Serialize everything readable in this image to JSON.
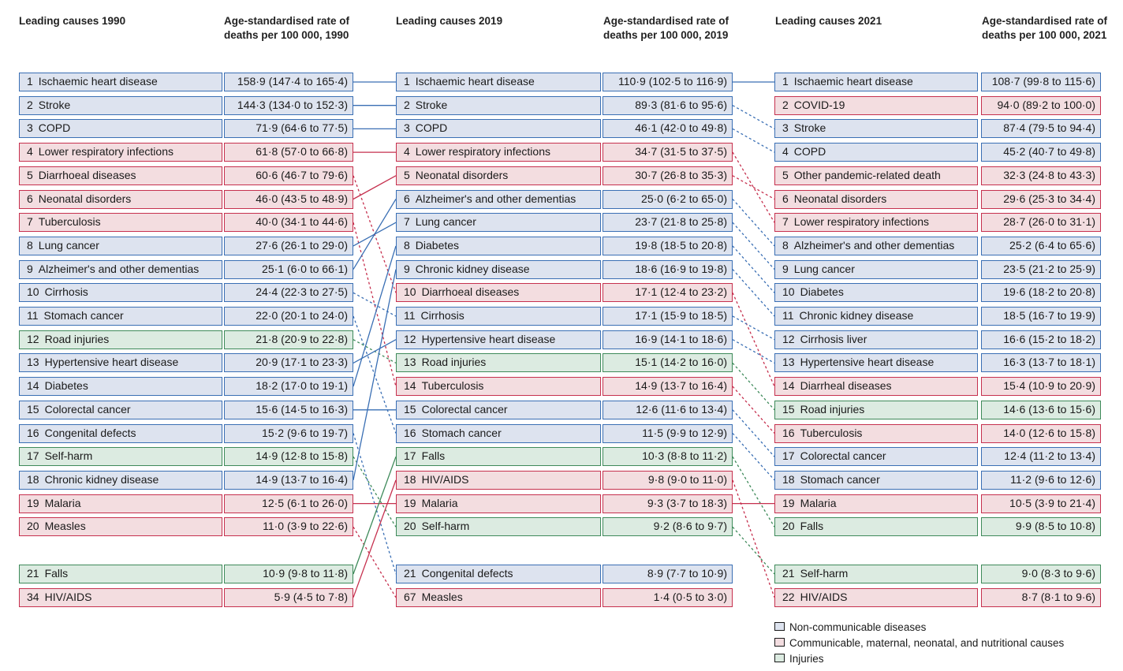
{
  "colors": {
    "ncd": "#3a6fb4",
    "cmn": "#c6304e",
    "inj": "#3e8a5a"
  },
  "legend": [
    {
      "category": "ncd",
      "label": "Non-communicable diseases"
    },
    {
      "category": "cmn",
      "label": "Communicable, maternal, neonatal, and nutritional causes"
    },
    {
      "category": "inj",
      "label": "Injuries"
    }
  ],
  "chart_data": {
    "type": "table",
    "headers": {
      "cause_1990": "Leading causes 1990",
      "rate_1990": "Age-standardised rate of deaths per 100 000, 1990",
      "cause_2019": "Leading causes 2019",
      "rate_2019": "Age-standardised rate of deaths per 100 000, 2019",
      "cause_2021": "Leading causes 2021",
      "rate_2021": "Age-standardised rate of deaths per 100 000, 2021"
    },
    "columns": [
      {
        "year": "1990",
        "rows": [
          {
            "rank": "1",
            "cause": "Ischaemic heart disease",
            "rate": "158·9 (147·4 to 165·4)",
            "category": "ncd",
            "key": "ihd"
          },
          {
            "rank": "2",
            "cause": "Stroke",
            "rate": "144·3 (134·0 to 152·3)",
            "category": "ncd",
            "key": "stroke"
          },
          {
            "rank": "3",
            "cause": "COPD",
            "rate": "71·9 (64·6 to 77·5)",
            "category": "ncd",
            "key": "copd"
          },
          {
            "rank": "4",
            "cause": "Lower respiratory infections",
            "rate": "61·8 (57·0 to 66·8)",
            "category": "cmn",
            "key": "lri"
          },
          {
            "rank": "5",
            "cause": "Diarrhoeal diseases",
            "rate": "60·6 (46·7 to 79·6)",
            "category": "cmn",
            "key": "diarrhoea"
          },
          {
            "rank": "6",
            "cause": "Neonatal disorders",
            "rate": "46·0 (43·5 to 48·9)",
            "category": "cmn",
            "key": "neonatal"
          },
          {
            "rank": "7",
            "cause": "Tuberculosis",
            "rate": "40·0 (34·1 to 44·6)",
            "category": "cmn",
            "key": "tb"
          },
          {
            "rank": "8",
            "cause": "Lung cancer",
            "rate": "27·6 (26·1 to 29·0)",
            "category": "ncd",
            "key": "lung"
          },
          {
            "rank": "9",
            "cause": "Alzheimer's and other dementias",
            "rate": "25·1 (6·0 to 66·1)",
            "category": "ncd",
            "key": "alz"
          },
          {
            "rank": "10",
            "cause": "Cirrhosis",
            "rate": "24·4 (22·3 to 27·5)",
            "category": "ncd",
            "key": "cirrhosis"
          },
          {
            "rank": "11",
            "cause": "Stomach cancer",
            "rate": "22·0 (20·1 to 24·0)",
            "category": "ncd",
            "key": "stomach"
          },
          {
            "rank": "12",
            "cause": "Road injuries",
            "rate": "21·8 (20·9 to 22·8)",
            "category": "inj",
            "key": "road"
          },
          {
            "rank": "13",
            "cause": "Hypertensive heart disease",
            "rate": "20·9 (17·1 to 23·3)",
            "category": "ncd",
            "key": "hhd"
          },
          {
            "rank": "14",
            "cause": "Diabetes",
            "rate": "18·2 (17·0 to 19·1)",
            "category": "ncd",
            "key": "diabetes"
          },
          {
            "rank": "15",
            "cause": "Colorectal cancer",
            "rate": "15·6 (14·5 to 16·3)",
            "category": "ncd",
            "key": "colorectal"
          },
          {
            "rank": "16",
            "cause": "Congenital defects",
            "rate": "15·2 (9·6 to 19·7)",
            "category": "ncd",
            "key": "congenital"
          },
          {
            "rank": "17",
            "cause": "Self-harm",
            "rate": "14·9 (12·8 to 15·8)",
            "category": "inj",
            "key": "selfharm"
          },
          {
            "rank": "18",
            "cause": "Chronic kidney disease",
            "rate": "14·9 (13·7 to 16·4)",
            "category": "ncd",
            "key": "ckd"
          },
          {
            "rank": "19",
            "cause": "Malaria",
            "rate": "12·5 (6·1 to 26·0)",
            "category": "cmn",
            "key": "malaria"
          },
          {
            "rank": "20",
            "cause": "Measles",
            "rate": "11·0 (3·9 to 22·6)",
            "category": "cmn",
            "key": "measles"
          },
          {
            "rank": "21",
            "cause": "Falls",
            "rate": "10·9 (9·8 to 11·8)",
            "category": "inj",
            "key": "falls"
          },
          {
            "rank": "34",
            "cause": "HIV/AIDS",
            "rate": "5·9 (4·5 to 7·8)",
            "category": "cmn",
            "key": "hiv"
          }
        ]
      },
      {
        "year": "2019",
        "rows": [
          {
            "rank": "1",
            "cause": "Ischaemic heart disease",
            "rate": "110·9 (102·5 to 116·9)",
            "category": "ncd",
            "key": "ihd"
          },
          {
            "rank": "2",
            "cause": "Stroke",
            "rate": "89·3 (81·6 to 95·6)",
            "category": "ncd",
            "key": "stroke"
          },
          {
            "rank": "3",
            "cause": "COPD",
            "rate": "46·1 (42·0 to 49·8)",
            "category": "ncd",
            "key": "copd"
          },
          {
            "rank": "4",
            "cause": "Lower respiratory infections",
            "rate": "34·7 (31·5 to 37·5)",
            "category": "cmn",
            "key": "lri"
          },
          {
            "rank": "5",
            "cause": "Neonatal disorders",
            "rate": "30·7 (26·8 to 35·3)",
            "category": "cmn",
            "key": "neonatal"
          },
          {
            "rank": "6",
            "cause": "Alzheimer's and other dementias",
            "rate": "25·0 (6·2 to 65·0)",
            "category": "ncd",
            "key": "alz"
          },
          {
            "rank": "7",
            "cause": "Lung cancer",
            "rate": "23·7 (21·8 to 25·8)",
            "category": "ncd",
            "key": "lung"
          },
          {
            "rank": "8",
            "cause": "Diabetes",
            "rate": "19·8 (18·5 to 20·8)",
            "category": "ncd",
            "key": "diabetes"
          },
          {
            "rank": "9",
            "cause": "Chronic kidney disease",
            "rate": "18·6 (16·9 to 19·8)",
            "category": "ncd",
            "key": "ckd"
          },
          {
            "rank": "10",
            "cause": "Diarrhoeal  diseases",
            "rate": "17·1 (12·4 to 23·2)",
            "category": "cmn",
            "key": "diarrhoea"
          },
          {
            "rank": "11",
            "cause": "Cirrhosis",
            "rate": "17·1 (15·9 to 18·5)",
            "category": "ncd",
            "key": "cirrhosis"
          },
          {
            "rank": "12",
            "cause": "Hypertensive heart disease",
            "rate": "16·9 (14·1 to 18·6)",
            "category": "ncd",
            "key": "hhd"
          },
          {
            "rank": "13",
            "cause": "Road injuries",
            "rate": "15·1 (14·2 to 16·0)",
            "category": "inj",
            "key": "road"
          },
          {
            "rank": "14",
            "cause": "Tuberculosis",
            "rate": "14·9 (13·7 to 16·4)",
            "category": "cmn",
            "key": "tb"
          },
          {
            "rank": "15",
            "cause": "Colorectal cancer",
            "rate": "12·6 (11·6 to 13·4)",
            "category": "ncd",
            "key": "colorectal"
          },
          {
            "rank": "16",
            "cause": "Stomach cancer",
            "rate": "11·5 (9·9 to 12·9)",
            "category": "ncd",
            "key": "stomach"
          },
          {
            "rank": "17",
            "cause": "Falls",
            "rate": "10·3 (8·8 to 11·2)",
            "category": "inj",
            "key": "falls"
          },
          {
            "rank": "18",
            "cause": "HIV/AIDS",
            "rate": "9·8 (9·0 to 11·0)",
            "category": "cmn",
            "key": "hiv"
          },
          {
            "rank": "19",
            "cause": "Malaria",
            "rate": "9·3 (3·7 to 18·3)",
            "category": "cmn",
            "key": "malaria"
          },
          {
            "rank": "20",
            "cause": "Self-harm",
            "rate": "9·2 (8·6 to 9·7)",
            "category": "inj",
            "key": "selfharm"
          },
          {
            "rank": "21",
            "cause": "Congenital defects",
            "rate": "8·9 (7·7 to 10·9)",
            "category": "ncd",
            "key": "congenital"
          },
          {
            "rank": "67",
            "cause": "Measles",
            "rate": "1·4 (0·5 to 3·0)",
            "category": "cmn",
            "key": "measles"
          }
        ]
      },
      {
        "year": "2021",
        "rows": [
          {
            "rank": "1",
            "cause": "Ischaemic heart disease",
            "rate": "108·7 (99·8 to 115·6)",
            "category": "ncd",
            "key": "ihd"
          },
          {
            "rank": "2",
            "cause": "COVID-19",
            "rate": "94·0 (89·2 to 100·0)",
            "category": "cmn",
            "key": "covid"
          },
          {
            "rank": "3",
            "cause": "Stroke",
            "rate": "87·4 (79·5 to 94·4)",
            "category": "ncd",
            "key": "stroke"
          },
          {
            "rank": "4",
            "cause": "COPD",
            "rate": "45·2 (40·7 to 49·8)",
            "category": "ncd",
            "key": "copd"
          },
          {
            "rank": "5",
            "cause": "Other pandemic-related death",
            "rate": "32·3 (24·8 to 43·3)",
            "category": "cmn",
            "key": "otherpandemic"
          },
          {
            "rank": "6",
            "cause": "Neonatal disorders",
            "rate": "29·6 (25·3 to 34·4)",
            "category": "cmn",
            "key": "neonatal"
          },
          {
            "rank": "7",
            "cause": "Lower respiratory infections",
            "rate": "28·7 (26·0 to 31·1)",
            "category": "cmn",
            "key": "lri"
          },
          {
            "rank": "8",
            "cause": "Alzheimer's and other dementias",
            "rate": "25·2 (6·4 to 65·6)",
            "category": "ncd",
            "key": "alz"
          },
          {
            "rank": "9",
            "cause": "Lung cancer",
            "rate": "23·5 (21·2 to 25·9)",
            "category": "ncd",
            "key": "lung"
          },
          {
            "rank": "10",
            "cause": "Diabetes",
            "rate": "19·6 (18·2 to 20·8)",
            "category": "ncd",
            "key": "diabetes"
          },
          {
            "rank": "11",
            "cause": "Chronic kidney disease",
            "rate": "18·5 (16·7 to 19·9)",
            "category": "ncd",
            "key": "ckd"
          },
          {
            "rank": "12",
            "cause": "Cirrhosis liver",
            "rate": "16·6 (15·2 to 18·2)",
            "category": "ncd",
            "key": "cirrhosis"
          },
          {
            "rank": "13",
            "cause": "Hypertensive heart disease",
            "rate": "16·3 (13·7 to 18·1)",
            "category": "ncd",
            "key": "hhd"
          },
          {
            "rank": "14",
            "cause": "Diarrheal diseases",
            "rate": "15·4 (10·9 to 20·9)",
            "category": "cmn",
            "key": "diarrhoea"
          },
          {
            "rank": "15",
            "cause": "Road injuries",
            "rate": "14·6 (13·6 to 15·6)",
            "category": "inj",
            "key": "road"
          },
          {
            "rank": "16",
            "cause": "Tuberculosis",
            "rate": "14·0 (12·6 to 15·8)",
            "category": "cmn",
            "key": "tb"
          },
          {
            "rank": "17",
            "cause": "Colorectal cancer",
            "rate": "12·4 (11·2 to 13·4)",
            "category": "ncd",
            "key": "colorectal"
          },
          {
            "rank": "18",
            "cause": "Stomach cancer",
            "rate": "11·2 (9·6 to 12·6)",
            "category": "ncd",
            "key": "stomach"
          },
          {
            "rank": "19",
            "cause": "Malaria",
            "rate": "10·5 (3·9 to 21·4)",
            "category": "cmn",
            "key": "malaria"
          },
          {
            "rank": "20",
            "cause": "Falls",
            "rate": "9·9 (8·5 to 10·8)",
            "category": "inj",
            "key": "falls"
          },
          {
            "rank": "21",
            "cause": "Self-harm",
            "rate": "9·0 (8·3 to 9·6)",
            "category": "inj",
            "key": "selfharm"
          },
          {
            "rank": "22",
            "cause": "HIV/AIDS",
            "rate": "8·7 (8·1 to 9·6)",
            "category": "cmn",
            "key": "hiv"
          }
        ]
      }
    ]
  }
}
